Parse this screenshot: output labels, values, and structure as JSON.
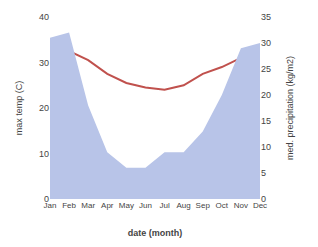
{
  "chart_data": {
    "type": "line",
    "categories": [
      "Jan",
      "Feb",
      "Mar",
      "Apr",
      "May",
      "Jun",
      "Jul",
      "Aug",
      "Sep",
      "Oct",
      "Nov",
      "Dec"
    ],
    "series": [
      {
        "type": "area",
        "axis": "y2",
        "color": "#b8c4e8",
        "values": [
          31,
          32,
          18,
          9,
          6,
          6,
          9,
          9,
          13,
          20,
          29,
          30
        ]
      },
      {
        "type": "line",
        "color": "#c0514d",
        "values": [
          31.5,
          32.5,
          30.5,
          27.5,
          25.5,
          24.5,
          24.0,
          25.0,
          27.5,
          29.0,
          31.0,
          31.5
        ]
      }
    ],
    "xlabel": "date (month)",
    "ylabel": "max temp (C)",
    "y2label": "med. precipitation (kg/m2)",
    "ylim": [
      0,
      40
    ],
    "yticks": [
      0,
      10,
      20,
      30,
      40
    ],
    "y2lim": [
      0,
      35
    ],
    "y2ticks": [
      0,
      5,
      10,
      15,
      20,
      25,
      30,
      35
    ],
    "grid": false
  }
}
